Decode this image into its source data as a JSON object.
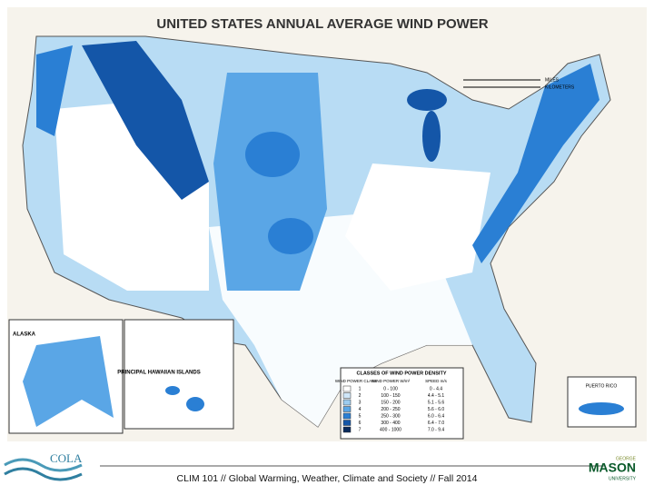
{
  "map": {
    "title": "UNITED STATES ANNUAL AVERAGE WIND POWER",
    "insets": {
      "alaska": "ALASKA",
      "hawaii": "PRINCIPAL HAWAIIAN ISLANDS",
      "puerto_rico": "PUERTO RICO"
    },
    "scale": {
      "miles": "MILES",
      "kilometers": "KILOMETERS"
    },
    "legend": {
      "title": "CLASSES OF WIND POWER DENSITY",
      "header": [
        "WIND POWER CLASS",
        "WIND POWER W/m²",
        "SPEED m/s"
      ],
      "rows": [
        [
          "1",
          "0 - 100",
          "0 - 4.4"
        ],
        [
          "2",
          "100 - 150",
          "4.4 - 5.1"
        ],
        [
          "3",
          "150 - 200",
          "5.1 - 5.6"
        ],
        [
          "4",
          "200 - 250",
          "5.6 - 6.0"
        ],
        [
          "5",
          "250 - 300",
          "6.0 - 6.4"
        ],
        [
          "6",
          "300 - 400",
          "6.4 - 7.0"
        ],
        [
          "7",
          "400 - 1000",
          "7.0 - 9.4"
        ]
      ],
      "colors": [
        "#ffffff",
        "#cfe6f8",
        "#9cccf0",
        "#5aa6e6",
        "#2a7fd4",
        "#1456a8",
        "#0a2a5c"
      ]
    },
    "footer": {
      "text": "CLIM 101 // Global Warming, Weather, Climate and Society // Fall 2014",
      "left_logo": "COLA",
      "right_logo": [
        "GEORGE",
        "MASON",
        "UNIVERSITY"
      ]
    }
  }
}
